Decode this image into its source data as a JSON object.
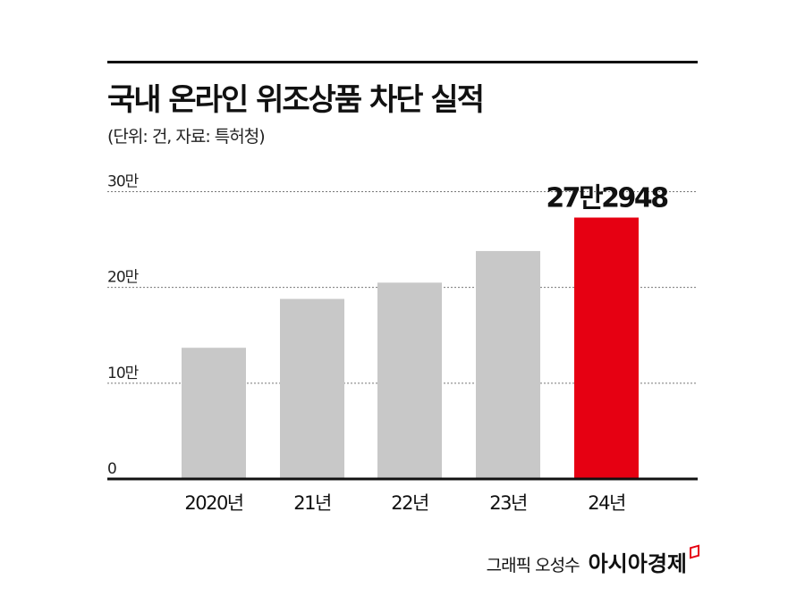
{
  "title": "국내 온라인 위조상품 차단 실적",
  "subtitle": "(단위: 건, 자료: 특허청)",
  "footer": {
    "credit": "그래픽 오성수",
    "brand": "아시아경제"
  },
  "chart_data": {
    "type": "bar",
    "title": "국내 온라인 위조상품 차단 실적",
    "xlabel": "",
    "ylabel": "건",
    "categories": [
      "2020년",
      "21년",
      "22년",
      "23년",
      "24년"
    ],
    "values": [
      137000,
      188000,
      205000,
      238000,
      272948
    ],
    "highlight_index": 4,
    "data_labels": {
      "4": "27만2948"
    },
    "yticks": [
      {
        "value": 0,
        "label": "0"
      },
      {
        "value": 100000,
        "label": "10만"
      },
      {
        "value": 200000,
        "label": "20만"
      },
      {
        "value": 300000,
        "label": "30만"
      }
    ],
    "ylim": [
      0,
      300000
    ],
    "grid": true,
    "colors": {
      "bar": "#c8c8c8",
      "highlight": "#e60012",
      "grid": "#777777",
      "axis": "#111111"
    }
  }
}
